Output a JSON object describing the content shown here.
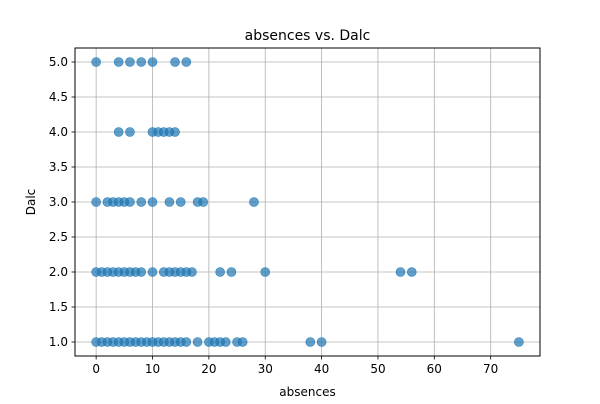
{
  "chart_data": {
    "type": "scatter",
    "title": "absences vs. Dalc",
    "xlabel": "absences",
    "ylabel": "Dalc",
    "xlim": [
      -3.75,
      78.75
    ],
    "ylim": [
      0.8,
      5.2
    ],
    "xticks": [
      "0",
      "10",
      "20",
      "30",
      "40",
      "50",
      "60",
      "70"
    ],
    "yticks": [
      "1.0",
      "1.5",
      "2.0",
      "2.5",
      "3.0",
      "3.5",
      "4.0",
      "4.5",
      "5.0"
    ],
    "grid": true,
    "series": [
      {
        "color": "#1f77b4",
        "points": [
          [
            0,
            1
          ],
          [
            1,
            1
          ],
          [
            2,
            1
          ],
          [
            3,
            1
          ],
          [
            4,
            1
          ],
          [
            5,
            1
          ],
          [
            6,
            1
          ],
          [
            7,
            1
          ],
          [
            8,
            1
          ],
          [
            9,
            1
          ],
          [
            10,
            1
          ],
          [
            11,
            1
          ],
          [
            12,
            1
          ],
          [
            13,
            1
          ],
          [
            14,
            1
          ],
          [
            15,
            1
          ],
          [
            16,
            1
          ],
          [
            18,
            1
          ],
          [
            20,
            1
          ],
          [
            21,
            1
          ],
          [
            22,
            1
          ],
          [
            23,
            1
          ],
          [
            25,
            1
          ],
          [
            26,
            1
          ],
          [
            38,
            1
          ],
          [
            40,
            1
          ],
          [
            75,
            1
          ],
          [
            0,
            2
          ],
          [
            1,
            2
          ],
          [
            2,
            2
          ],
          [
            3,
            2
          ],
          [
            4,
            2
          ],
          [
            5,
            2
          ],
          [
            6,
            2
          ],
          [
            7,
            2
          ],
          [
            8,
            2
          ],
          [
            10,
            2
          ],
          [
            12,
            2
          ],
          [
            13,
            2
          ],
          [
            14,
            2
          ],
          [
            15,
            2
          ],
          [
            16,
            2
          ],
          [
            17,
            2
          ],
          [
            22,
            2
          ],
          [
            24,
            2
          ],
          [
            30,
            2
          ],
          [
            54,
            2
          ],
          [
            56,
            2
          ],
          [
            0,
            3
          ],
          [
            2,
            3
          ],
          [
            3,
            3
          ],
          [
            4,
            3
          ],
          [
            5,
            3
          ],
          [
            6,
            3
          ],
          [
            8,
            3
          ],
          [
            10,
            3
          ],
          [
            13,
            3
          ],
          [
            15,
            3
          ],
          [
            18,
            3
          ],
          [
            19,
            3
          ],
          [
            28,
            3
          ],
          [
            4,
            4
          ],
          [
            6,
            4
          ],
          [
            10,
            4
          ],
          [
            11,
            4
          ],
          [
            12,
            4
          ],
          [
            13,
            4
          ],
          [
            14,
            4
          ],
          [
            0,
            5
          ],
          [
            4,
            5
          ],
          [
            6,
            5
          ],
          [
            8,
            5
          ],
          [
            10,
            5
          ],
          [
            14,
            5
          ],
          [
            16,
            5
          ]
        ]
      }
    ]
  }
}
